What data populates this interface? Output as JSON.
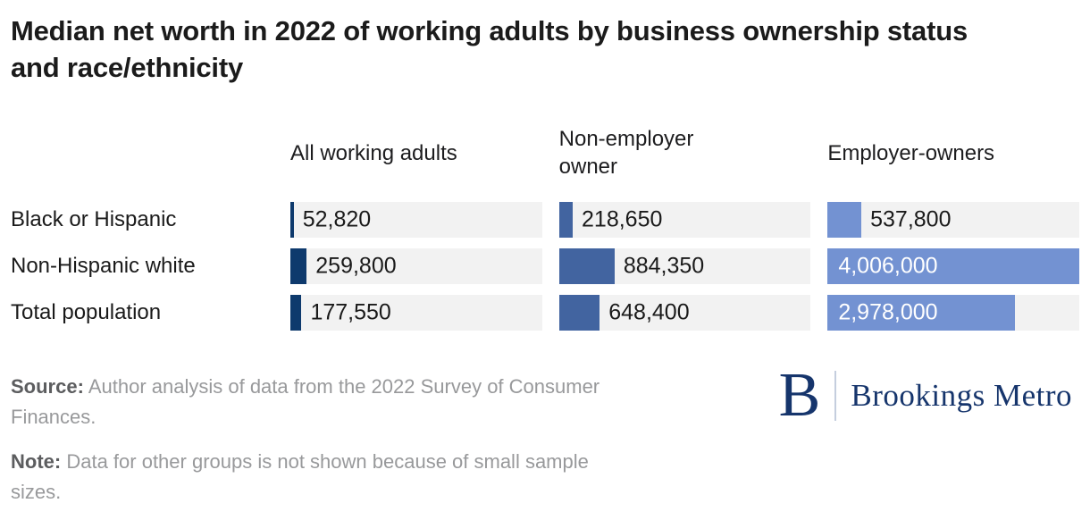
{
  "title": "Median net worth in 2022 of working adults by business ownership status and race/ethnicity",
  "chart_data": {
    "type": "bar",
    "title": "Median net worth in 2022 of working adults by business ownership status and race/ethnicity",
    "unit": "US dollars",
    "columns": [
      "All working adults",
      "Non-employer owner",
      "Employer-owners"
    ],
    "categories": [
      "Black or Hispanic",
      "Non-Hispanic white",
      "Total population"
    ],
    "series": [
      {
        "name": "All working adults",
        "color": "#0e3a6d",
        "values": [
          52820,
          259800,
          177550
        ],
        "labels": [
          "52,820",
          "259,800",
          "177,550"
        ]
      },
      {
        "name": "Non-employer owner",
        "color": "#4264a0",
        "values": [
          218650,
          884350,
          648400
        ],
        "labels": [
          "218,650",
          "884,350",
          "648,400"
        ]
      },
      {
        "name": "Employer-owners",
        "color": "#7392d2",
        "values": [
          537800,
          4006000,
          2978000
        ],
        "labels": [
          "537,800",
          "4,006,000",
          "2,978,000"
        ]
      }
    ],
    "scale_max": 4006000,
    "track_color": "#f2f2f2",
    "grid": "off",
    "legend_position": "none",
    "value_labels": "shown at bar end; inside bar in white when bar is long"
  },
  "source": {
    "label": "Source:",
    "text": "Author analysis of data from the 2022 Survey of Consumer Finances."
  },
  "note": {
    "label": "Note:",
    "text": "Data for other groups is not shown because of small sample sizes."
  },
  "logo": {
    "mark": "B",
    "text": "Brookings Metro",
    "color": "#16356c"
  }
}
